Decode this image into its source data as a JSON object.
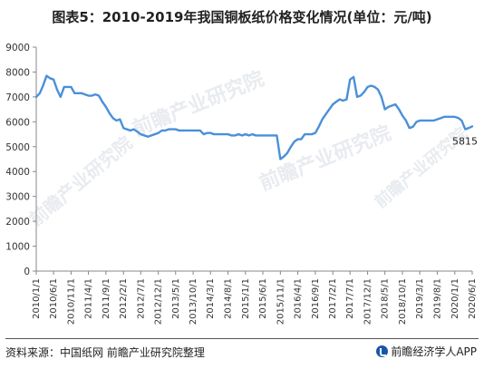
{
  "title": "图表5：2010-2019年我国铜板纸价格变化情况(单位：元/吨)",
  "source": "资料来源：中国纸网 前瞻产业研究院整理",
  "brand": "前瞻经济学人APP",
  "watermark": "前瞻产业研究院",
  "colors": {
    "line": "#4a90d9",
    "axis": "#888888",
    "tick_text": "#333333"
  },
  "chart_data": {
    "type": "line",
    "title": "图表5：2010-2019年我国铜板纸价格变化情况(单位：元/吨)",
    "xlabel": "",
    "ylabel": "",
    "unit": "元/吨",
    "ylim": [
      0,
      9000
    ],
    "yticks": [
      0,
      1000,
      2000,
      3000,
      4000,
      5000,
      6000,
      7000,
      8000,
      9000
    ],
    "xlim": [
      "2010-01-01",
      "2020-06-01"
    ],
    "xtick_labels": [
      "2010/1/1",
      "2010/6/1",
      "2010/11/1",
      "2011/4/1",
      "2011/9/1",
      "2012/2/1",
      "2012/7/1",
      "2012/12/1",
      "2013/5/1",
      "2013/10/1",
      "2014/3/1",
      "2014/8/1",
      "2015/1/1",
      "2015/6/1",
      "2015/11/1",
      "2016/4/1",
      "2016/9/1",
      "2017/2/1",
      "2017/7/1",
      "2017/12/1",
      "2018/5/1",
      "2018/10/1",
      "2019/3/1",
      "2019/8/1",
      "2020/1/1",
      "2020/6/1"
    ],
    "grid": false,
    "annotations": [
      {
        "x": "2020-06-01",
        "y": 5815,
        "text": "5815"
      }
    ],
    "series": [
      {
        "points": [
          [
            "2010-01-01",
            7000
          ],
          [
            "2010-02-01",
            7150
          ],
          [
            "2010-03-01",
            7450
          ],
          [
            "2010-04-01",
            7850
          ],
          [
            "2010-05-01",
            7750
          ],
          [
            "2010-06-01",
            7700
          ],
          [
            "2010-07-01",
            7300
          ],
          [
            "2010-08-01",
            7000
          ],
          [
            "2010-09-01",
            7400
          ],
          [
            "2010-10-01",
            7400
          ],
          [
            "2010-11-01",
            7400
          ],
          [
            "2010-12-01",
            7150
          ],
          [
            "2011-01-01",
            7150
          ],
          [
            "2011-02-01",
            7150
          ],
          [
            "2011-03-01",
            7100
          ],
          [
            "2011-04-01",
            7050
          ],
          [
            "2011-05-01",
            7050
          ],
          [
            "2011-06-01",
            7100
          ],
          [
            "2011-07-01",
            7050
          ],
          [
            "2011-08-01",
            6800
          ],
          [
            "2011-09-01",
            6600
          ],
          [
            "2011-10-01",
            6350
          ],
          [
            "2011-11-01",
            6150
          ],
          [
            "2011-12-01",
            6050
          ],
          [
            "2012-01-01",
            6100
          ],
          [
            "2012-02-01",
            5750
          ],
          [
            "2012-03-01",
            5700
          ],
          [
            "2012-04-01",
            5650
          ],
          [
            "2012-05-01",
            5700
          ],
          [
            "2012-06-01",
            5600
          ],
          [
            "2012-07-01",
            5500
          ],
          [
            "2012-08-01",
            5450
          ],
          [
            "2012-09-01",
            5400
          ],
          [
            "2012-10-01",
            5450
          ],
          [
            "2012-11-01",
            5500
          ],
          [
            "2012-12-01",
            5550
          ],
          [
            "2013-01-01",
            5650
          ],
          [
            "2013-02-01",
            5650
          ],
          [
            "2013-03-01",
            5700
          ],
          [
            "2013-04-01",
            5700
          ],
          [
            "2013-05-01",
            5700
          ],
          [
            "2013-06-01",
            5650
          ],
          [
            "2013-07-01",
            5650
          ],
          [
            "2013-08-01",
            5650
          ],
          [
            "2013-09-01",
            5650
          ],
          [
            "2013-10-01",
            5650
          ],
          [
            "2013-11-01",
            5650
          ],
          [
            "2013-12-01",
            5650
          ],
          [
            "2014-01-01",
            5500
          ],
          [
            "2014-02-01",
            5550
          ],
          [
            "2014-03-01",
            5550
          ],
          [
            "2014-04-01",
            5500
          ],
          [
            "2014-05-01",
            5500
          ],
          [
            "2014-06-01",
            5500
          ],
          [
            "2014-07-01",
            5500
          ],
          [
            "2014-08-01",
            5500
          ],
          [
            "2014-09-01",
            5450
          ],
          [
            "2014-10-01",
            5450
          ],
          [
            "2014-11-01",
            5500
          ],
          [
            "2014-12-01",
            5450
          ],
          [
            "2015-01-01",
            5500
          ],
          [
            "2015-02-01",
            5450
          ],
          [
            "2015-03-01",
            5500
          ],
          [
            "2015-04-01",
            5450
          ],
          [
            "2015-05-01",
            5450
          ],
          [
            "2015-06-01",
            5450
          ],
          [
            "2015-07-01",
            5450
          ],
          [
            "2015-08-01",
            5450
          ],
          [
            "2015-09-01",
            5450
          ],
          [
            "2015-10-01",
            5450
          ],
          [
            "2015-11-01",
            4500
          ],
          [
            "2015-12-01",
            4600
          ],
          [
            "2016-01-01",
            4750
          ],
          [
            "2016-02-01",
            5000
          ],
          [
            "2016-03-01",
            5200
          ],
          [
            "2016-04-01",
            5300
          ],
          [
            "2016-05-01",
            5300
          ],
          [
            "2016-06-01",
            5500
          ],
          [
            "2016-07-01",
            5500
          ],
          [
            "2016-08-01",
            5500
          ],
          [
            "2016-09-01",
            5550
          ],
          [
            "2016-10-01",
            5800
          ],
          [
            "2016-11-01",
            6100
          ],
          [
            "2016-12-01",
            6300
          ],
          [
            "2017-01-01",
            6500
          ],
          [
            "2017-02-01",
            6700
          ],
          [
            "2017-03-01",
            6800
          ],
          [
            "2017-04-01",
            6900
          ],
          [
            "2017-05-01",
            6850
          ],
          [
            "2017-06-01",
            6900
          ],
          [
            "2017-07-01",
            7700
          ],
          [
            "2017-08-01",
            7800
          ],
          [
            "2017-09-01",
            7000
          ],
          [
            "2017-10-01",
            7050
          ],
          [
            "2017-11-01",
            7200
          ],
          [
            "2017-12-01",
            7400
          ],
          [
            "2018-01-01",
            7450
          ],
          [
            "2018-02-01",
            7400
          ],
          [
            "2018-03-01",
            7300
          ],
          [
            "2018-04-01",
            7000
          ],
          [
            "2018-05-01",
            6500
          ],
          [
            "2018-06-01",
            6600
          ],
          [
            "2018-07-01",
            6650
          ],
          [
            "2018-08-01",
            6700
          ],
          [
            "2018-09-01",
            6500
          ],
          [
            "2018-10-01",
            6250
          ],
          [
            "2018-11-01",
            6050
          ],
          [
            "2018-12-01",
            5750
          ],
          [
            "2019-01-01",
            5800
          ],
          [
            "2019-02-01",
            6000
          ],
          [
            "2019-03-01",
            6050
          ],
          [
            "2019-04-01",
            6050
          ],
          [
            "2019-05-01",
            6050
          ],
          [
            "2019-06-01",
            6050
          ],
          [
            "2019-07-01",
            6050
          ],
          [
            "2019-08-01",
            6100
          ],
          [
            "2019-09-01",
            6150
          ],
          [
            "2019-10-01",
            6200
          ],
          [
            "2019-11-01",
            6200
          ],
          [
            "2019-12-01",
            6200
          ],
          [
            "2020-01-01",
            6200
          ],
          [
            "2020-02-01",
            6150
          ],
          [
            "2020-03-01",
            6050
          ],
          [
            "2020-04-01",
            5700
          ],
          [
            "2020-05-01",
            5750
          ],
          [
            "2020-06-01",
            5815
          ]
        ]
      }
    ]
  }
}
